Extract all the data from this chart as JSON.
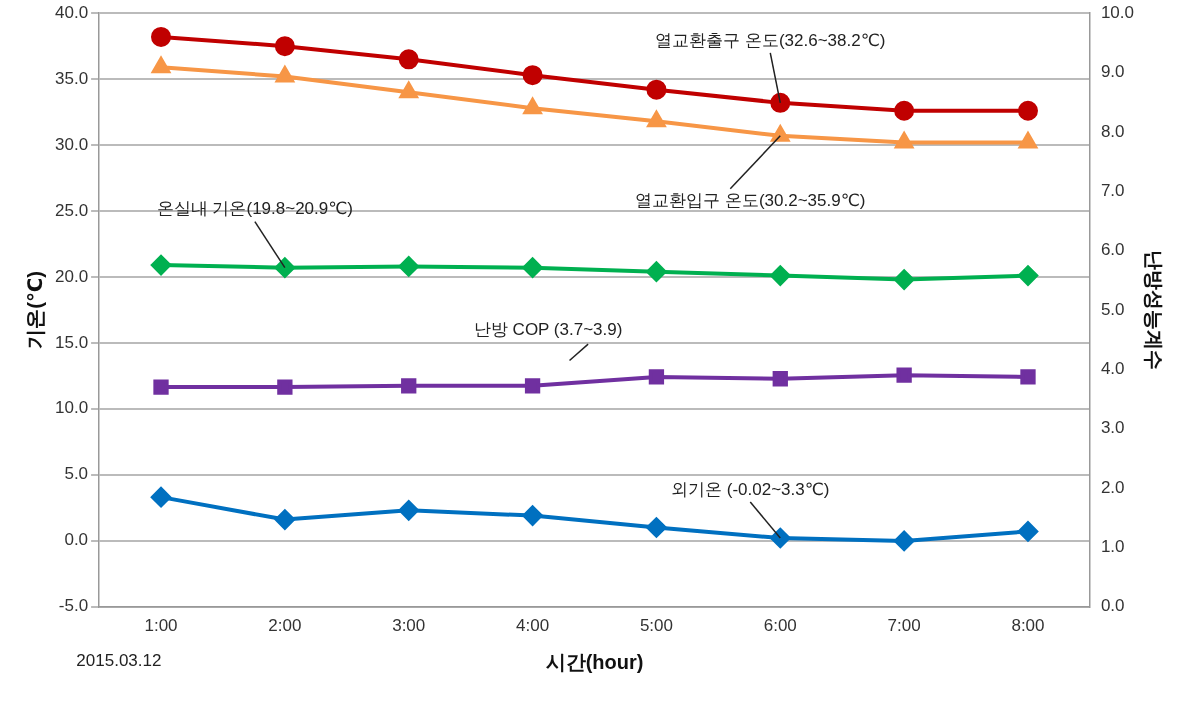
{
  "chart_data": {
    "type": "line",
    "xlabel": "시간(hour)",
    "ylabel": "기온(℃)",
    "y2label": "난방성능계수",
    "categories": [
      "1:00",
      "2:00",
      "3:00",
      "4:00",
      "5:00",
      "6:00",
      "7:00",
      "8:00"
    ],
    "series": [
      {
        "color": "#c00000",
        "marker": "circle",
        "values": [
          38.2,
          37.5,
          36.5,
          35.3,
          34.2,
          33.2,
          32.6,
          32.6
        ]
      },
      {
        "color": "#f79646",
        "marker": "triangle",
        "values": [
          35.9,
          35.2,
          34.0,
          32.8,
          31.8,
          30.7,
          30.2,
          30.2
        ]
      },
      {
        "color": "#00b050",
        "marker": "diamond",
        "values": [
          20.9,
          20.7,
          20.8,
          20.7,
          20.4,
          20.1,
          19.8,
          20.1
        ]
      },
      {
        "color": "#7030a0",
        "marker": "square",
        "axis": "y2",
        "values": [
          3.7,
          3.7,
          3.72,
          3.72,
          3.87,
          3.84,
          3.9,
          3.87
        ]
      },
      {
        "color": "#0070c0",
        "marker": "diamond",
        "values": [
          3.3,
          1.6,
          2.3,
          1.9,
          1.0,
          0.2,
          -0.02,
          0.7
        ]
      }
    ],
    "ylim": [
      -5,
      40
    ],
    "yticks": [
      {
        "value": -5,
        "label": "-5.0"
      },
      {
        "value": 0,
        "label": "0.0"
      },
      {
        "value": 5,
        "label": "5.0"
      },
      {
        "value": 10,
        "label": "10.0"
      },
      {
        "value": 15,
        "label": "15.0"
      },
      {
        "value": 20,
        "label": "20.0"
      },
      {
        "value": 25,
        "label": "25.0"
      },
      {
        "value": 30,
        "label": "30.0"
      },
      {
        "value": 35,
        "label": "35.0"
      },
      {
        "value": 40,
        "label": "40.0"
      }
    ],
    "y2lim": [
      0,
      10
    ],
    "y2ticks": [
      {
        "value": 0,
        "label": "0.0"
      },
      {
        "value": 1,
        "label": "1.0"
      },
      {
        "value": 2,
        "label": "2.0"
      },
      {
        "value": 3,
        "label": "3.0"
      },
      {
        "value": 4,
        "label": "4.0"
      },
      {
        "value": 5,
        "label": "5.0"
      },
      {
        "value": 6,
        "label": "6.0"
      },
      {
        "value": 7,
        "label": "7.0"
      },
      {
        "value": 8,
        "label": "8.0"
      },
      {
        "value": 9,
        "label": "9.0"
      },
      {
        "value": 10,
        "label": "10.0"
      }
    ],
    "grid": "y",
    "legend": false,
    "line_style": "solid",
    "annotations": [
      {
        "text": "열교환출구 온도(32.6~38.2℃)",
        "x": "6:00",
        "y": 33.2
      },
      {
        "text": "열교환입구 온도(30.2~35.9℃)",
        "x": "6:00",
        "y": 30.7
      },
      {
        "text": "온실내 기온(19.8~20.9℃)",
        "x": "2:00",
        "y": 20.7
      },
      "난방 COP (3.7~3.9)",
      {
        "text": "외기온 (-0.02~3.3℃)",
        "x": "6:00",
        "y": 0.2
      },
      "2015.03.12"
    ]
  }
}
